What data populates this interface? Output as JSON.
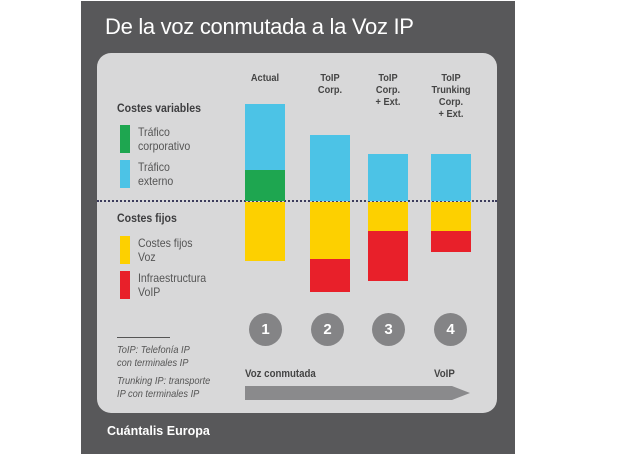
{
  "title": "De la voz conmutada a la Voz IP",
  "source": "Cuántalis Europa",
  "legend": {
    "variable_heading": "Costes variables",
    "fixed_heading": "Costes fijos",
    "items": [
      {
        "label_1": "Tráfico",
        "label_2": "corporativo",
        "color": "#1ea650"
      },
      {
        "label_1": "Tráfico",
        "label_2": "externo",
        "color": "#4cc3e6"
      },
      {
        "label_1": "Costes fijos",
        "label_2": "Voz",
        "color": "#fdd000"
      },
      {
        "label_1": "Infraestructura",
        "label_2": "VoIP",
        "color": "#e8202a"
      }
    ]
  },
  "notes": {
    "line_1": "ToIP: Telefonía IP",
    "line_2": "con terminales IP",
    "line_3": "Trunking IP: transporte",
    "line_4": "IP con terminales IP"
  },
  "axis": {
    "start": "Voz conmutada",
    "end": "VoIP"
  },
  "chart_data": {
    "type": "bar",
    "stacked": true,
    "categories": [
      [
        "Actual"
      ],
      [
        "ToIP",
        "Corp."
      ],
      [
        "ToIP",
        "Corp.",
        "+ Ext."
      ],
      [
        "ToIP",
        "Trunking",
        "Corp.",
        "+ Ext."
      ]
    ],
    "steps": [
      "1",
      "2",
      "3",
      "4"
    ],
    "series": [
      {
        "name": "Tráfico corporativo",
        "group": "variable",
        "color": "#1ea650",
        "values": [
          31,
          0,
          0,
          0
        ]
      },
      {
        "name": "Tráfico externo",
        "group": "variable",
        "color": "#4cc3e6",
        "values": [
          66,
          66,
          47,
          47
        ]
      },
      {
        "name": "Costes fijos Voz",
        "group": "fixed",
        "color": "#fdd000",
        "values": [
          59,
          57,
          29,
          29
        ]
      },
      {
        "name": "Infraestructura VoIP",
        "group": "fixed",
        "color": "#e8202a",
        "values": [
          0,
          33,
          50,
          21
        ]
      }
    ],
    "baseline": "dotted line separating variable (above) and fixed (below) costs",
    "grid": false
  }
}
